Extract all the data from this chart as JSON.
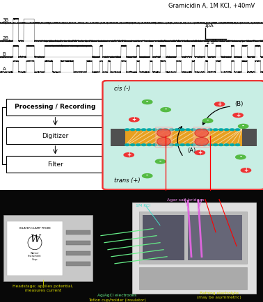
{
  "title": "Gramicidin A, 1M KCl, +40mV",
  "trace_labels": [
    "3B",
    "2B",
    "B",
    "A"
  ],
  "scale_bar_y": "1pA",
  "scale_bar_x": "2 s",
  "box_labels": [
    "Processing / Recording",
    "Digitizer",
    "Filter"
  ],
  "schematic_cis": "cis (-)",
  "schematic_trans": "trans (+)",
  "schematic_B": "(B)",
  "schematic_A": "(A)",
  "bg_white": "#ffffff",
  "schematic_bg": "#c8eee4",
  "schematic_border": "#ee3333",
  "membrane_gold": "#e8a020",
  "membrane_dark": "#505050",
  "membrane_teal": "#00aaaa",
  "ion_red": "#ee3333",
  "ion_green": "#55bb44"
}
